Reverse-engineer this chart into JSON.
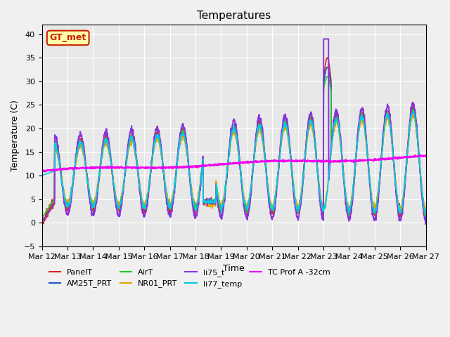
{
  "title": "Temperatures",
  "xlabel": "Time",
  "ylabel": "Temperature (C)",
  "ylim": [
    -5,
    42
  ],
  "xlim": [
    0,
    15
  ],
  "xtick_labels": [
    "Mar 12",
    "Mar 13",
    "Mar 14",
    "Mar 15",
    "Mar 16",
    "Mar 17",
    "Mar 18",
    "Mar 19",
    "Mar 20",
    "Mar 21",
    "Mar 22",
    "Mar 23",
    "Mar 24",
    "Mar 25",
    "Mar 26",
    "Mar 27"
  ],
  "annotation_text": "GT_met",
  "annotation_color": "#cc2200",
  "annotation_bg": "#ffffaa",
  "bg_color": "#e8e8e8",
  "plot_bg": "#e8e8e8",
  "series": {
    "PanelT": {
      "color": "#dd2222",
      "lw": 1.2
    },
    "AM25T_PRT": {
      "color": "#2255cc",
      "lw": 1.2
    },
    "AirT": {
      "color": "#22cc22",
      "lw": 1.2
    },
    "NR01_PRT": {
      "color": "#ddaa00",
      "lw": 1.2
    },
    "li75_t": {
      "color": "#8833dd",
      "lw": 1.4
    },
    "li77_temp": {
      "color": "#00ccdd",
      "lw": 1.2
    },
    "TC Prof A -32cm": {
      "color": "#ee00ee",
      "lw": 1.5
    }
  }
}
